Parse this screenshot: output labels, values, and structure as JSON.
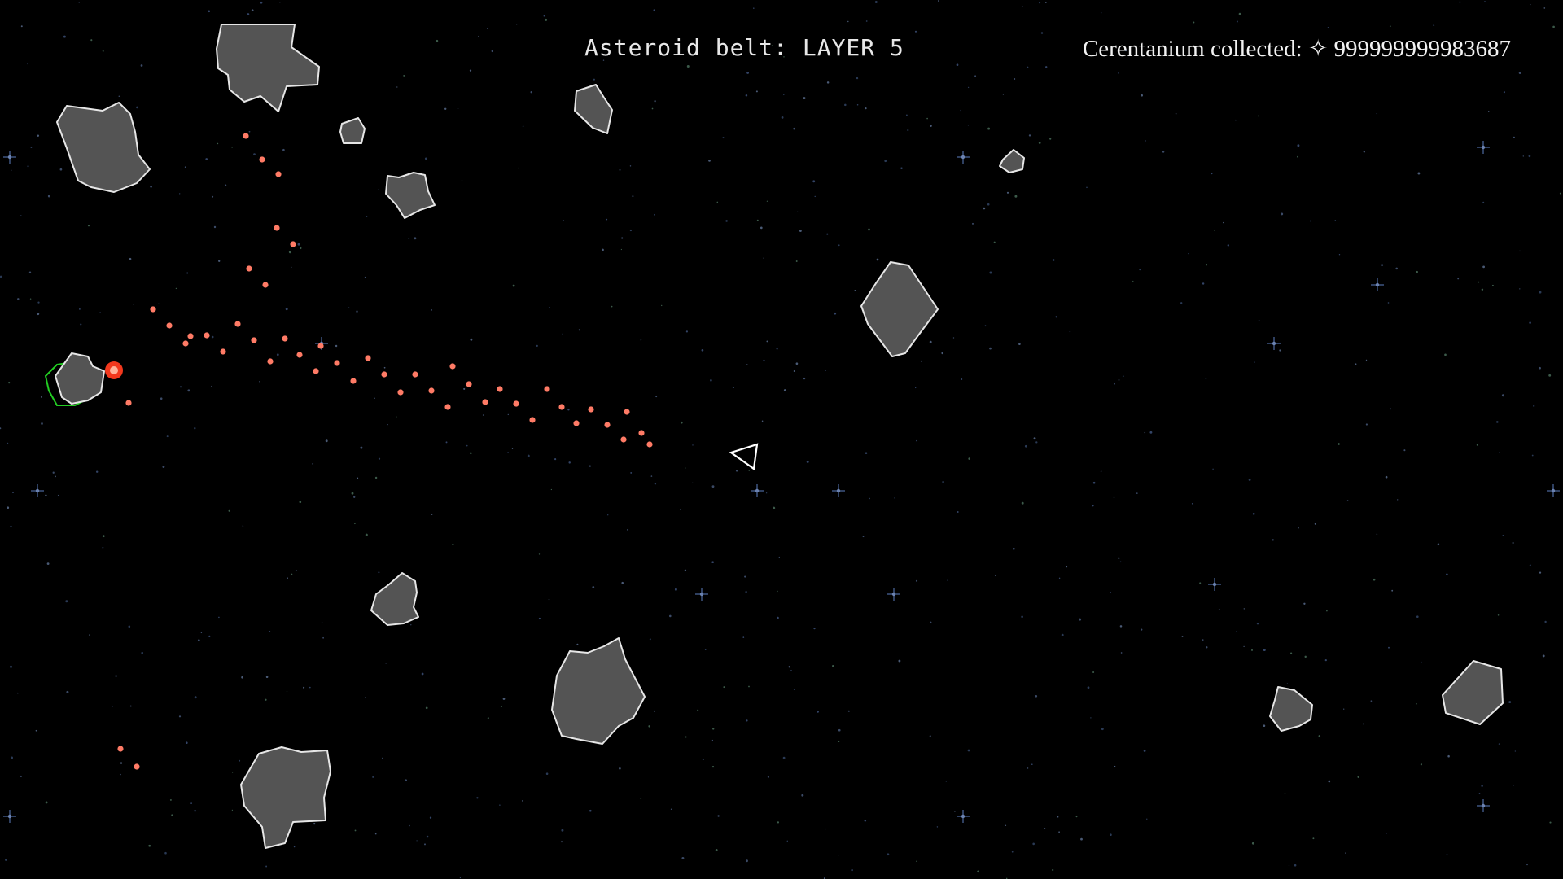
{
  "hud": {
    "layer_label": "Asteroid belt: LAYER 5",
    "resource_label": "Cerentanium collected:",
    "resource_icon": "sparkle-icon",
    "resource_icon_glyph": "✧",
    "resource_value": "999999999983687"
  },
  "colors": {
    "background": "#000000",
    "asteroid_fill": "#545454",
    "asteroid_stroke": "#e6e6e6",
    "bullet": "#ff7b66",
    "ship_stroke": "#ffffff",
    "targeted_outline": "#22cc22",
    "impact": "#ff3b1f"
  }
}
